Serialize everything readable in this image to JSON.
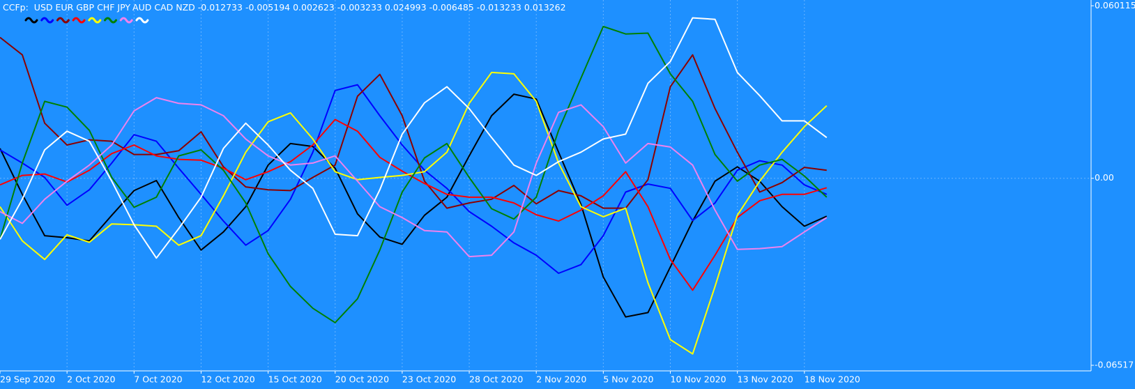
{
  "chart_data": {
    "type": "line",
    "indicator": "CCFp:",
    "categories": [
      "29 Sep 2020",
      null,
      null,
      "2 Oct 2020",
      null,
      null,
      "7 Oct 2020",
      null,
      null,
      "12 Oct 2020",
      null,
      null,
      "15 Oct 2020",
      null,
      null,
      "20 Oct 2020",
      null,
      null,
      "23 Oct 2020",
      null,
      null,
      "28 Oct 2020",
      null,
      null,
      "2 Nov 2020",
      null,
      null,
      "5 Nov 2020",
      null,
      null,
      "10 Nov 2020",
      null,
      null,
      "13 Nov 2020",
      null,
      null,
      "18 Nov 2020",
      null
    ],
    "ylim": [
      -0.06517,
      0.060115
    ],
    "yticks": [
      0.060115,
      {
        "value": 0,
        "label": "0.00"
      },
      -0.06517
    ],
    "grid": true,
    "series": [
      {
        "name": "USD",
        "color": "#000000",
        "readout": -0.012733,
        "values": [
          0.0104,
          -0.0056,
          -0.02,
          -0.0207,
          -0.0218,
          -0.0129,
          -0.0043,
          -0.0008,
          -0.0137,
          -0.025,
          -0.0187,
          -0.0099,
          0.0046,
          0.0121,
          0.0111,
          0.0035,
          -0.0124,
          -0.0205,
          -0.023,
          -0.0129,
          -0.0066,
          0.0078,
          0.0218,
          0.0293,
          0.0276,
          0.0091,
          -0.0091,
          -0.0344,
          -0.0483,
          -0.0468,
          -0.0309,
          -0.0149,
          -0.001,
          0.004,
          -0.001,
          -0.0099,
          -0.0167,
          -0.0132
        ]
      },
      {
        "name": "EUR",
        "color": "#0000ff",
        "readout": -0.005194,
        "values": [
          0.0099,
          0.0053,
          0.0003,
          -0.0094,
          -0.004,
          0.0053,
          0.0152,
          0.0129,
          0.0035,
          -0.0056,
          -0.0149,
          -0.0233,
          -0.0182,
          -0.0073,
          0.0091,
          0.0306,
          0.0326,
          0.0218,
          0.0116,
          0.0028,
          -0.0035,
          -0.0116,
          -0.0167,
          -0.0225,
          -0.0268,
          -0.0331,
          -0.0301,
          -0.02,
          -0.0048,
          -0.002,
          -0.0035,
          -0.0147,
          -0.0086,
          0.0028,
          0.0061,
          0.0046,
          -0.0023,
          -0.0056
        ]
      },
      {
        "name": "GBP",
        "color": "#8b0000",
        "readout": 0.002623,
        "values": [
          0.0491,
          0.043,
          0.0192,
          0.0116,
          0.0134,
          0.0129,
          0.0083,
          0.0083,
          0.0096,
          0.0162,
          0.004,
          -0.003,
          -0.004,
          -0.0043,
          0.0003,
          0.0046,
          0.0286,
          0.0362,
          0.0218,
          -0.001,
          -0.0104,
          -0.0086,
          -0.0073,
          -0.0025,
          -0.0089,
          -0.0043,
          -0.0061,
          -0.0104,
          -0.0104,
          -0.0005,
          0.0319,
          0.043,
          0.0243,
          0.0091,
          -0.0048,
          -0.0015,
          0.0038,
          0.0028
        ]
      },
      {
        "name": "CHF",
        "color": "#ff0000",
        "readout": -0.003233,
        "values": [
          -0.0023,
          0.001,
          0.0015,
          -0.0013,
          0.0028,
          0.0086,
          0.0116,
          0.0078,
          0.0066,
          0.0063,
          0.0035,
          -0.0005,
          0.0023,
          0.0058,
          0.0116,
          0.0205,
          0.0164,
          0.0073,
          0.0025,
          -0.0018,
          -0.0056,
          -0.0066,
          -0.0066,
          -0.0086,
          -0.0127,
          -0.0149,
          -0.0111,
          -0.0061,
          0.0023,
          -0.0099,
          -0.0283,
          -0.039,
          -0.0268,
          -0.0137,
          -0.0078,
          -0.0056,
          -0.0056,
          -0.0033
        ]
      },
      {
        "name": "JPY",
        "color": "#ffff00",
        "readout": 0.024993,
        "values": [
          -0.0099,
          -0.0218,
          -0.0283,
          -0.0197,
          -0.0223,
          -0.0159,
          -0.0162,
          -0.0167,
          -0.0233,
          -0.02,
          -0.0061,
          0.0091,
          0.0197,
          0.0228,
          0.0137,
          0.0023,
          -0.0005,
          0.0003,
          0.001,
          0.0023,
          0.0091,
          0.0261,
          0.0369,
          0.0364,
          0.0268,
          0.0053,
          -0.0099,
          -0.0134,
          -0.0104,
          -0.0364,
          -0.0562,
          -0.0612,
          -0.0377,
          -0.0129,
          -0.001,
          0.0091,
          0.018,
          0.0253
        ]
      },
      {
        "name": "AUD",
        "color": "#008000",
        "readout": -0.006485,
        "values": [
          -0.0213,
          0.0053,
          0.0268,
          0.0248,
          0.0167,
          0.0003,
          -0.0101,
          -0.0066,
          0.0078,
          0.0099,
          0.0028,
          -0.0086,
          -0.0263,
          -0.0377,
          -0.0453,
          -0.0503,
          -0.042,
          -0.025,
          -0.0048,
          0.0071,
          0.0121,
          0.0003,
          -0.0106,
          -0.0142,
          -0.0066,
          0.0167,
          0.0349,
          0.0529,
          0.0503,
          0.0506,
          0.0364,
          0.0268,
          0.0083,
          -0.001,
          0.0046,
          0.0066,
          0.0008,
          -0.0066
        ]
      },
      {
        "name": "CAD",
        "color": "#ee82ee",
        "readout": -0.013233,
        "values": [
          -0.0116,
          -0.0157,
          -0.0073,
          -0.001,
          0.0046,
          0.0116,
          0.0235,
          0.0281,
          0.0261,
          0.0256,
          0.0218,
          0.0137,
          0.0078,
          0.0046,
          0.0053,
          0.0078,
          -0.001,
          -0.0099,
          -0.0137,
          -0.0182,
          -0.0187,
          -0.0273,
          -0.0268,
          -0.0187,
          0.0053,
          0.023,
          0.0256,
          0.018,
          0.0053,
          0.0121,
          0.0109,
          0.0046,
          -0.0111,
          -0.0248,
          -0.0245,
          -0.0238,
          -0.0187,
          -0.0137
        ]
      },
      {
        "name": "NZD",
        "color": "#ffffff",
        "readout": 0.013262,
        "values": [
          -0.0213,
          -0.0073,
          0.0099,
          0.0164,
          0.0129,
          -0.001,
          -0.0162,
          -0.0278,
          -0.0175,
          -0.0066,
          0.0104,
          0.0192,
          0.0116,
          0.0028,
          -0.0035,
          -0.0195,
          -0.02,
          -0.004,
          0.0154,
          0.0263,
          0.0319,
          0.0243,
          0.0142,
          0.0046,
          0.001,
          0.0058,
          0.0091,
          0.0137,
          0.0154,
          0.0331,
          0.0407,
          0.0559,
          0.0554,
          0.0369,
          0.0288,
          0.02,
          0.02,
          0.0142
        ]
      }
    ]
  }
}
